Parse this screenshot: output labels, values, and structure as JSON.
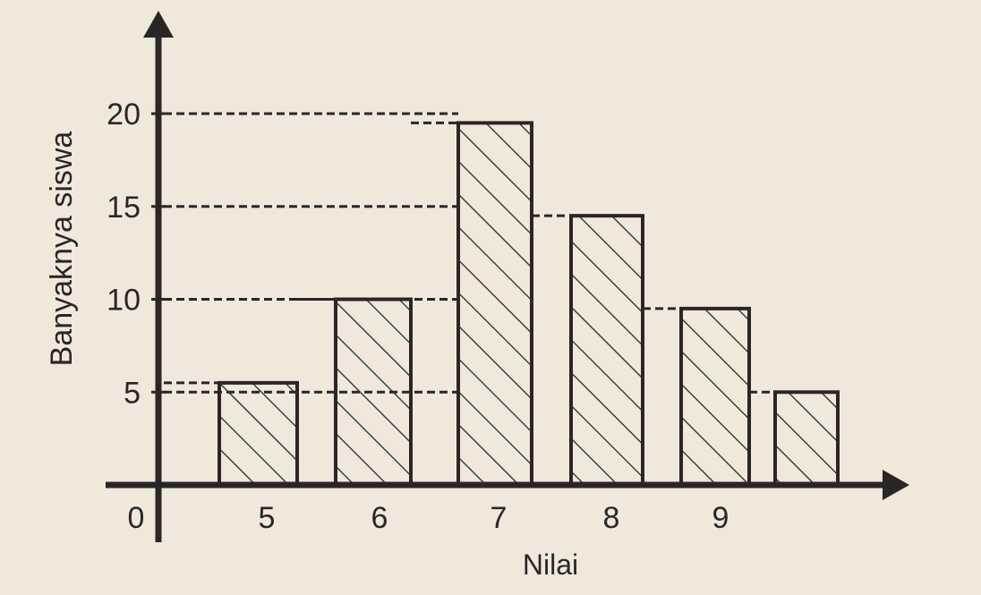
{
  "chart_data": {
    "type": "bar",
    "xlabel": "Nilai",
    "ylabel": "Banyaknya siswa",
    "origin_label": "0",
    "x_tick_labels": [
      "5",
      "6",
      "7",
      "8",
      "9"
    ],
    "y_ticks": [
      5,
      10,
      15,
      20
    ],
    "ylim": [
      0,
      22
    ],
    "bars": [
      {
        "value": 5.5
      },
      {
        "value": 10
      },
      {
        "value": 19.5
      },
      {
        "value": 14.5
      },
      {
        "value": 9.5
      },
      {
        "value": 5
      }
    ],
    "bar_fill": "hatched",
    "grid": "dashed reference lines from y-axis to bar tops",
    "legend": "none",
    "colors": {
      "ink": "#2b2626",
      "paper": "#efe9dc"
    }
  }
}
